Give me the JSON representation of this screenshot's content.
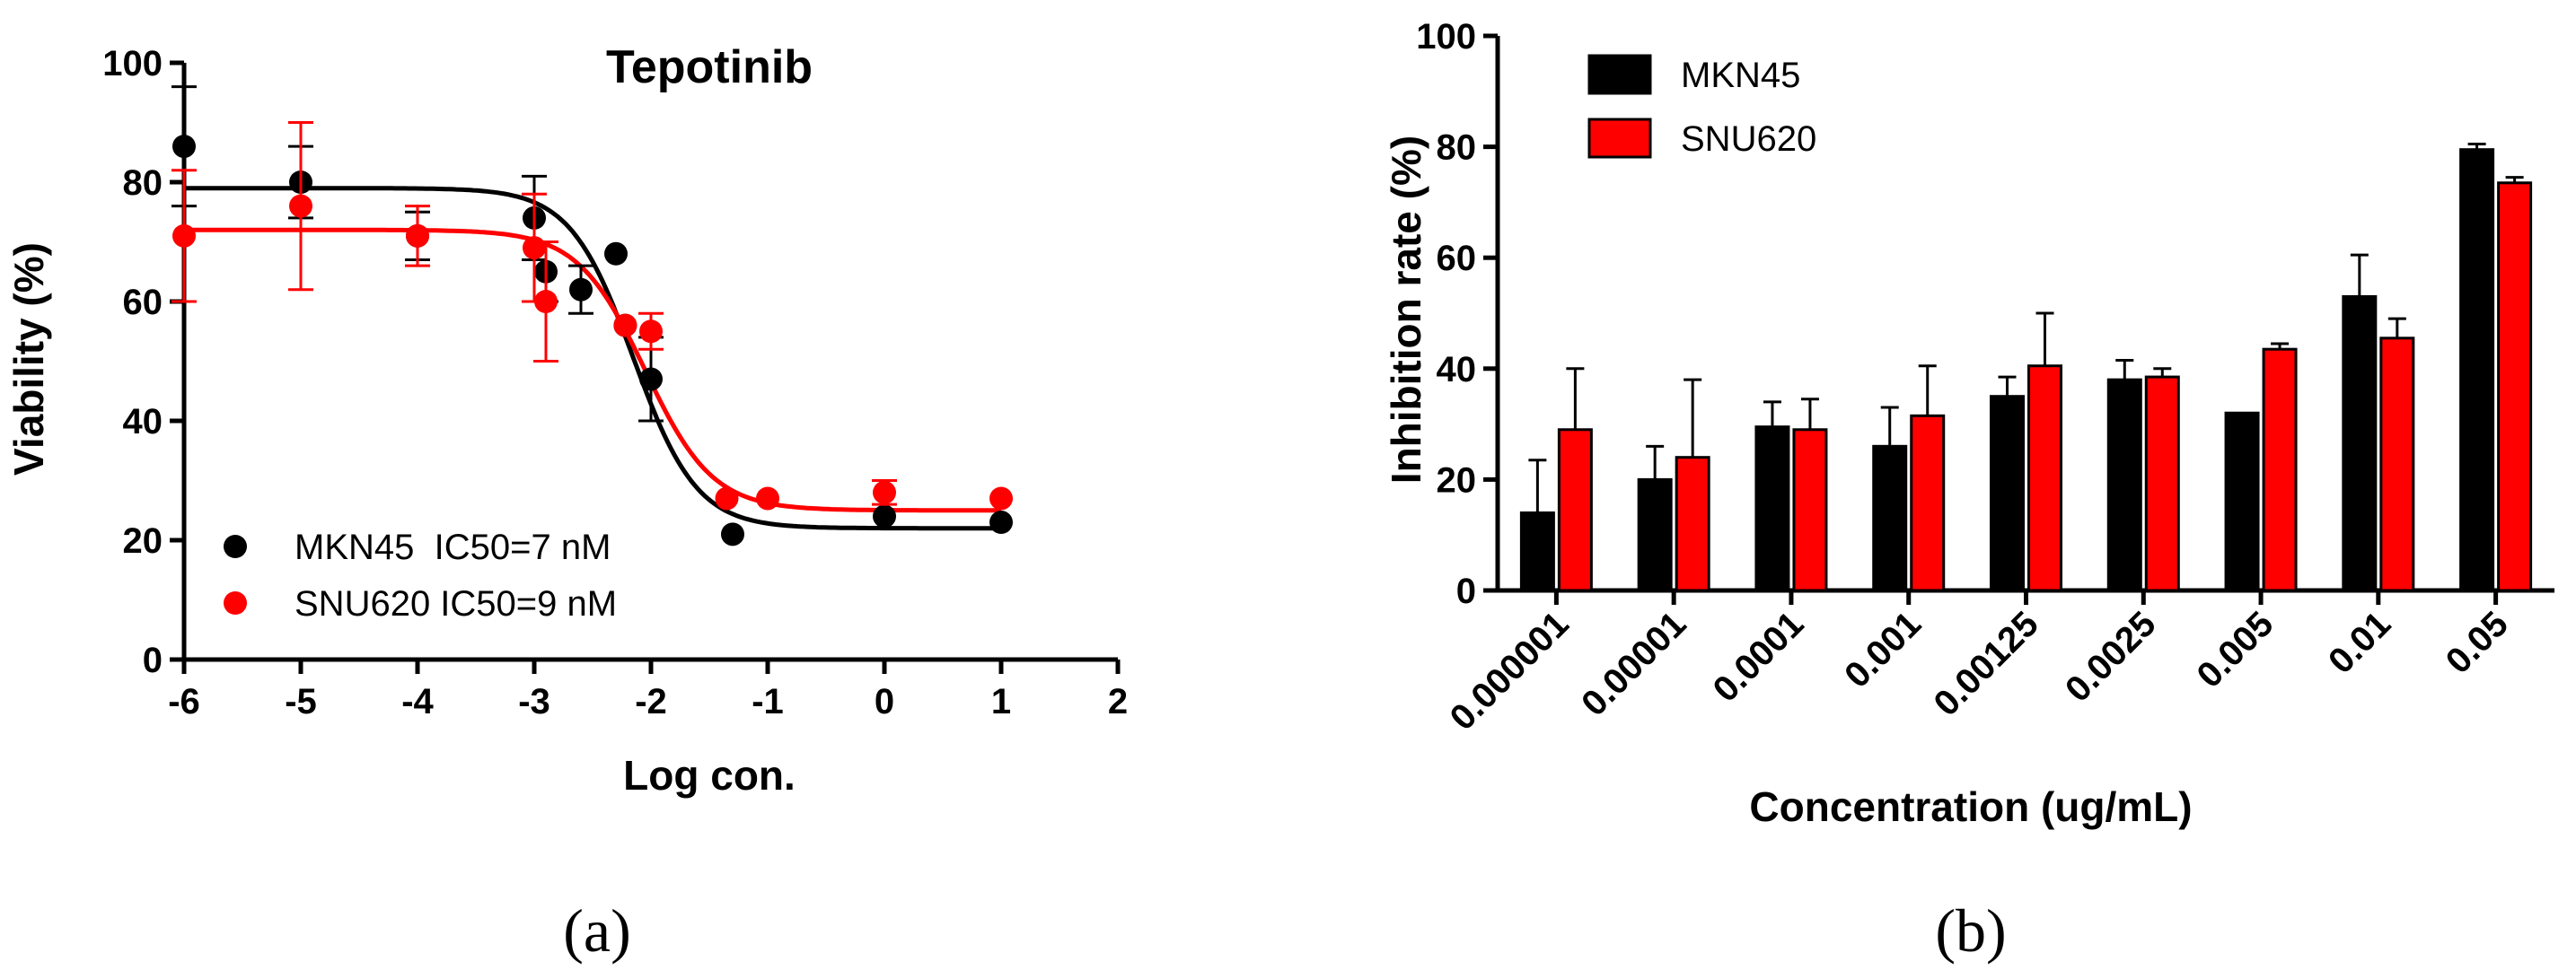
{
  "chart_data": [
    {
      "type": "scatter",
      "title": "Tepotinib",
      "xlabel": "Log con.",
      "ylabel": "Viability (%)",
      "xlim": [
        -6,
        2
      ],
      "ylim": [
        0,
        100
      ],
      "x_ticks": [
        "-6",
        "-5",
        "-4",
        "-3",
        "-2",
        "-1",
        "0",
        "1",
        "2"
      ],
      "y_ticks": [
        "0",
        "20",
        "40",
        "60",
        "80",
        "100"
      ],
      "legend_position": "bottom-left",
      "caption": "(a)",
      "series": [
        {
          "name": "MKN45  IC50=7 nM",
          "color": "#000000",
          "points": [
            {
              "x": -6,
              "y": 86,
              "err": 10
            },
            {
              "x": -5,
              "y": 80,
              "err": 6
            },
            {
              "x": -4,
              "y": 71,
              "err": 4
            },
            {
              "x": -3,
              "y": 74,
              "err": 7
            },
            {
              "x": -2.9,
              "y": 65,
              "err": 5
            },
            {
              "x": -2.6,
              "y": 62,
              "err": 4
            },
            {
              "x": -2.3,
              "y": 68,
              "err": 0
            },
            {
              "x": -2.22,
              "y": 56,
              "err": 0
            },
            {
              "x": -2,
              "y": 47,
              "err": 7
            },
            {
              "x": -1.3,
              "y": 21,
              "err": 0
            },
            {
              "x": 0,
              "y": 24,
              "err": 0
            },
            {
              "x": 1,
              "y": 23,
              "err": 0
            }
          ],
          "curve": {
            "top": 79,
            "bottom": 22,
            "logIC50": -2.15,
            "hill": 1.6
          }
        },
        {
          "name": "SNU620 IC50=9 nM",
          "color": "#ff0000",
          "points": [
            {
              "x": -6,
              "y": 71,
              "err": 11
            },
            {
              "x": -5,
              "y": 76,
              "err": 14
            },
            {
              "x": -4,
              "y": 71,
              "err": 5
            },
            {
              "x": -3,
              "y": 69,
              "err": 9
            },
            {
              "x": -2.9,
              "y": 60,
              "err": 10
            },
            {
              "x": -2.22,
              "y": 56,
              "err": 0
            },
            {
              "x": -2,
              "y": 55,
              "err": 3
            },
            {
              "x": -1.35,
              "y": 27,
              "err": 0
            },
            {
              "x": -1,
              "y": 27,
              "err": 0
            },
            {
              "x": 0,
              "y": 28,
              "err": 2
            },
            {
              "x": 1,
              "y": 27,
              "err": 0
            }
          ],
          "curve": {
            "top": 72,
            "bottom": 25,
            "logIC50": -2.05,
            "hill": 1.5
          }
        }
      ]
    },
    {
      "type": "bar",
      "xlabel": "Concentration (ug/mL)",
      "ylabel": "Inhibition rate (%)",
      "ylim": [
        0,
        100
      ],
      "y_ticks": [
        "0",
        "20",
        "40",
        "60",
        "80",
        "100"
      ],
      "legend_position": "top-left",
      "caption": "(b)",
      "categories": [
        "0.000001",
        "0.00001",
        "0.0001",
        "0.001",
        "0.00125",
        "0.0025",
        "0.005",
        "0.01",
        "0.05"
      ],
      "series": [
        {
          "name": "MKN45",
          "color": "#000000",
          "values": [
            14,
            20,
            29.5,
            26,
            35,
            38,
            32,
            53,
            79.5
          ],
          "errors": [
            9.5,
            6,
            4.5,
            7,
            3.5,
            3.5,
            0,
            7.5,
            1
          ]
        },
        {
          "name": "SNU620",
          "color": "#ff0000",
          "values": [
            29,
            24,
            29,
            31.5,
            40.5,
            38.5,
            43.5,
            45.5,
            73.5
          ],
          "errors": [
            11,
            14,
            5.5,
            9,
            9.5,
            1.5,
            1,
            3.5,
            1
          ]
        }
      ]
    }
  ]
}
